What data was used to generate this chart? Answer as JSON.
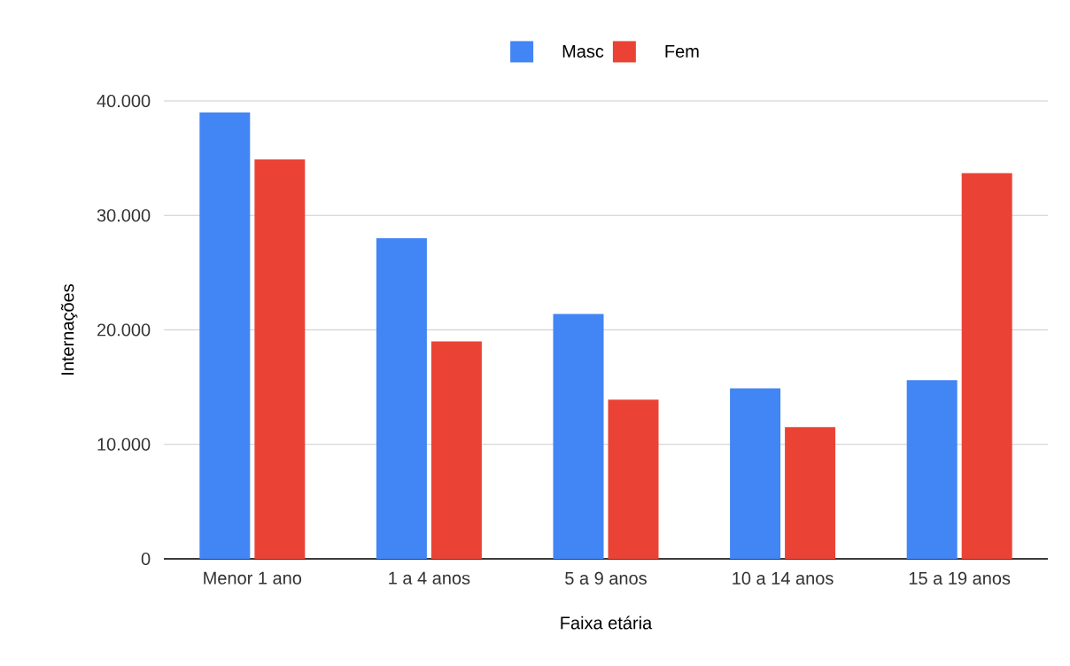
{
  "chart_data": {
    "type": "bar",
    "xlabel": "Faixa etária",
    "ylabel": "Internações",
    "categories": [
      "Menor 1 ano",
      "1 a 4 anos",
      "5 a 9 anos",
      "10 a 14 anos",
      "15 a 19 anos"
    ],
    "series": [
      {
        "name": "Masc",
        "color": "#4285f4",
        "values": [
          39000,
          28000,
          21400,
          14900,
          15600
        ]
      },
      {
        "name": "Fem",
        "color": "#ea4335",
        "values": [
          34900,
          19000,
          13900,
          11500,
          33700
        ]
      }
    ],
    "ylim": [
      0,
      40000
    ],
    "yticks": [
      {
        "value": 0,
        "label": "0"
      },
      {
        "value": 10000,
        "label": "10.000"
      },
      {
        "value": 20000,
        "label": "20.000"
      },
      {
        "value": 30000,
        "label": "30.000"
      },
      {
        "value": 40000,
        "label": "40.000"
      }
    ],
    "grid": "y",
    "legend": "top"
  }
}
